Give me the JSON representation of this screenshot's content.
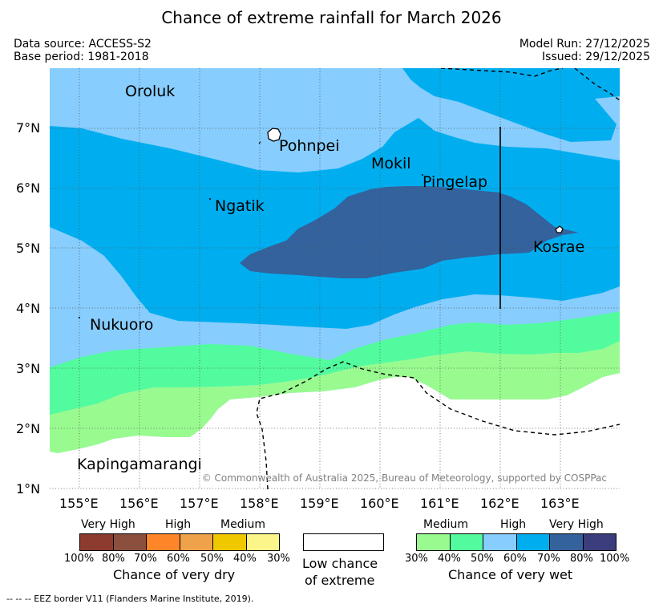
{
  "title": "Chance of extreme rainfall for March 2026",
  "meta": {
    "data_source": "Data source: ACCESS-S2",
    "base_period": "Base period: 1981-2018",
    "model_run": "Model Run: 27/12/2025",
    "issued": "Issued: 29/12/2025"
  },
  "map": {
    "lon_ticks": [
      "155°E",
      "156°E",
      "157°E",
      "158°E",
      "159°E",
      "160°E",
      "161°E",
      "162°E",
      "163°E"
    ],
    "lat_ticks": [
      "7°N",
      "6°N",
      "5°N",
      "4°N",
      "3°N",
      "2°N",
      "1°N"
    ],
    "places": {
      "oroluk": "Oroluk",
      "pohnpei": "Pohnpei",
      "mokil": "Mokil",
      "pingelap": "Pingelap",
      "ngatik": "Ngatik",
      "kosrae": "Kosrae",
      "nukuoro": "Nukuoro",
      "kapingamarangi": "Kapingamarangi"
    },
    "copyright": "© Commonwealth of Australia 2025, Bureau of Meteorology, supported by COSPPac",
    "colors": {
      "wet_30_40": "#99fb8f",
      "wet_40_50": "#52fc9e",
      "wet_50_60": "#87cdfd",
      "wet_60_70": "#00aeef",
      "wet_70_80": "#33629d",
      "wet_80_100": "#3b3d7c",
      "dry_80_100": "#8c3b2e",
      "dry_70_80": "#8b4f3e",
      "dry_60_70": "#fe8629",
      "dry_50_60": "#f0a24b",
      "dry_40_50": "#f0c800",
      "dry_30_40": "#fbf58a"
    }
  },
  "legend": {
    "dry": {
      "very_high": "Very High",
      "high": "High",
      "medium": "Medium",
      "percents": [
        "100%",
        "80%",
        "70%",
        "60%",
        "50%",
        "40%",
        "30%"
      ],
      "caption": "Chance of very dry"
    },
    "low": {
      "caption_line1": "Low chance",
      "caption_line2": "of extreme"
    },
    "wet": {
      "medium": "Medium",
      "high": "High",
      "very_high": "Very High",
      "percents": [
        "30%",
        "40%",
        "50%",
        "60%",
        "70%",
        "80%",
        "100%"
      ],
      "caption": "Chance of very wet"
    }
  },
  "footnote": "--  --  -- EEZ border V11 (Flanders Marine Institute, 2019)."
}
